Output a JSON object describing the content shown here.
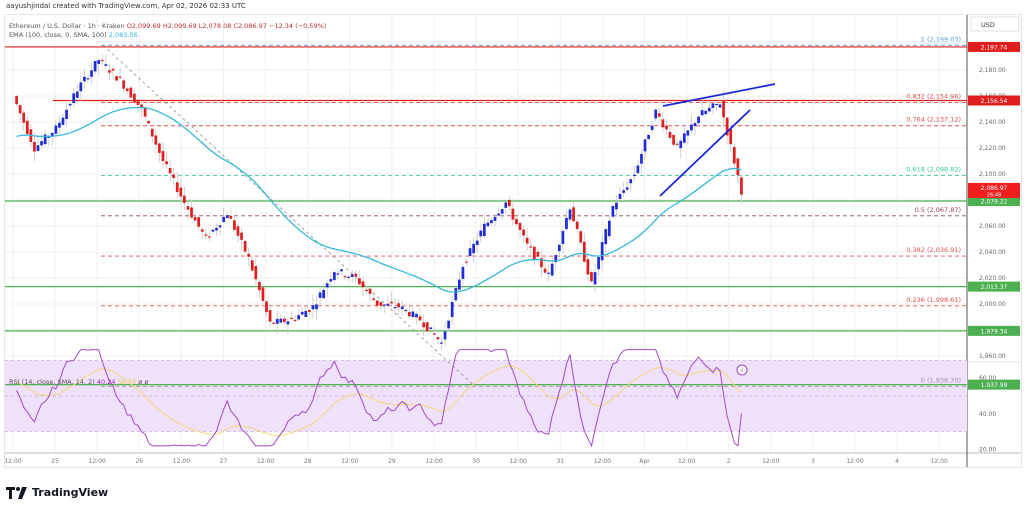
{
  "header": {
    "credit": "aayushjindal created with TradingView.com, Apr 02, 2026 02:33 UTC",
    "symbol": "Ethereum / U.S. Dollar · 1h · Kraken",
    "open": "O2,099.69",
    "high": "H2,099.69",
    "low": "L2,078.08",
    "close": "C2,086.97",
    "change": "−12.34 (−0.59%)",
    "ema_label": "EMA (100, close, 0, SMA, 100)",
    "ema_value": "2,083.56"
  },
  "rsi_legend": {
    "label": "RSI (14, close, SMA, 14, 2)",
    "rsi_value": "40.24",
    "ma_value": "56.79",
    "extra": "ø ø"
  },
  "currency": "USD",
  "footer": {
    "brand": "TradingView"
  },
  "colors": {
    "up": "#1f2bd6",
    "down": "#e01e1e",
    "ema": "#37b8d9",
    "resistance": "#e01e1e",
    "support": "#4caf50",
    "rsi": "#a349c4",
    "rsi_ma": "#f5d776",
    "rsi_band": "#efe0fb",
    "trendline": "#1a28d8"
  },
  "chart_data": [
    {
      "type": "candlestick",
      "title": "Ethereum / U.S. Dollar · 1h · Kraken",
      "ylabel": "USD",
      "ylim": [
        1925,
        2205
      ],
      "y_ticks": [
        "2,180.00",
        "2,160.00",
        "2,140.00",
        "2,120.00",
        "2,100.00",
        "2,080.00",
        "2,060.00",
        "2,040.00",
        "2,020.00",
        "2,000.00",
        "1,980.00",
        "1,960.00"
      ],
      "x_ticks": [
        "12:00",
        "25",
        "12:00",
        "26",
        "12:00",
        "27",
        "12:00",
        "28",
        "12:00",
        "29",
        "12:00",
        "30",
        "12:00",
        "31",
        "12:00",
        "Apr",
        "12:00",
        "2",
        "12:00",
        "3",
        "12:00",
        "4",
        "12:00"
      ],
      "ohlc_last": {
        "open": 2099.69,
        "high": 2099.69,
        "low": 2078.08,
        "close": 2086.97,
        "change": -12.34,
        "change_pct": -0.59
      },
      "ema100_last": 2083.56,
      "price_path_approx": [
        {
          "t": "Mar 24 12:00",
          "price": 2160
        },
        {
          "t": "Mar 24 18:00",
          "price": 2120
        },
        {
          "t": "Mar 25 00:00",
          "price": 2135
        },
        {
          "t": "Mar 25 06:00",
          "price": 2165
        },
        {
          "t": "Mar 25 12:00",
          "price": 2188
        },
        {
          "t": "Mar 25 18:00",
          "price": 2172
        },
        {
          "t": "Mar 26 00:00",
          "price": 2150
        },
        {
          "t": "Mar 26 06:00",
          "price": 2110
        },
        {
          "t": "Mar 26 12:00",
          "price": 2078
        },
        {
          "t": "Mar 26 18:00",
          "price": 2050
        },
        {
          "t": "Mar 27 06:00",
          "price": 2070
        },
        {
          "t": "Mar 27 12:00",
          "price": 2035
        },
        {
          "t": "Mar 27 18:00",
          "price": 1985
        },
        {
          "t": "Mar 28 06:00",
          "price": 1988
        },
        {
          "t": "Mar 28 18:00",
          "price": 1998
        },
        {
          "t": "Mar 29 00:00",
          "price": 2026
        },
        {
          "t": "Mar 29 06:00",
          "price": 2020
        },
        {
          "t": "Mar 29 12:00",
          "price": 2000
        },
        {
          "t": "Mar 29 18:00",
          "price": 1998
        },
        {
          "t": "Mar 30 00:00",
          "price": 1988
        },
        {
          "t": "Mar 30 03:00",
          "price": 1970
        },
        {
          "t": "Mar 30 06:00",
          "price": 2030
        },
        {
          "t": "Mar 30 12:00",
          "price": 2060
        },
        {
          "t": "Mar 30 18:00",
          "price": 2078
        },
        {
          "t": "Mar 31 00:00",
          "price": 2045
        },
        {
          "t": "Mar 31 06:00",
          "price": 2022
        },
        {
          "t": "Mar 31 12:00",
          "price": 2075
        },
        {
          "t": "Mar 31 18:00",
          "price": 2015
        },
        {
          "t": "Apr 01 00:00",
          "price": 2075
        },
        {
          "t": "Apr 01 06:00",
          "price": 2100
        },
        {
          "t": "Apr 01 12:00",
          "price": 2148
        },
        {
          "t": "Apr 01 18:00",
          "price": 2120
        },
        {
          "t": "Apr 02 00:00",
          "price": 2145
        },
        {
          "t": "Apr 02 01:00",
          "price": 2155
        },
        {
          "t": "Apr 02 02:00",
          "price": 2087
        }
      ],
      "horizontal_levels": [
        {
          "label": "2,197.74",
          "price": 2197.74,
          "color": "#e01e1e",
          "style": "solid"
        },
        {
          "label": "2,156.54",
          "price": 2156.54,
          "color": "#e01e1e",
          "style": "solid"
        },
        {
          "label": "2,079.22",
          "price": 2079.22,
          "color": "#4caf50",
          "style": "solid"
        },
        {
          "label": "2,013.37",
          "price": 2013.37,
          "color": "#4caf50",
          "style": "solid"
        },
        {
          "label": "1,979.34",
          "price": 1979.34,
          "color": "#4caf50",
          "style": "solid"
        },
        {
          "label": "1,937.99",
          "price": 1937.99,
          "color": "#4caf50",
          "style": "solid"
        }
      ],
      "fibonacci": [
        {
          "ratio": "1",
          "price": 2199.03,
          "label": "1 (2,199.03)",
          "color": "#5b9bd5"
        },
        {
          "ratio": "0.832",
          "price": 2154.96,
          "label": "0.832 (2,154.96)",
          "color": "#e05050"
        },
        {
          "ratio": "0.764",
          "price": 2137.12,
          "label": "0.764 (2,137.12)",
          "color": "#e05050"
        },
        {
          "ratio": "0.618",
          "price": 2098.82,
          "label": "0.618 (2,098.82)",
          "color": "#3cc8a0"
        },
        {
          "ratio": "0.5",
          "price": 2067.87,
          "label": "0.5 (2,067.87)",
          "color": "#8b4a5a"
        },
        {
          "ratio": "0.382",
          "price": 2036.91,
          "label": "0.382 (2,036.91)",
          "color": "#e05050"
        },
        {
          "ratio": "0.236",
          "price": 1998.61,
          "label": "0.236 (1,998.61)",
          "color": "#e05050"
        },
        {
          "ratio": "0",
          "price": 1936.7,
          "label": "0 (1,936.70)",
          "color": "#999999"
        }
      ],
      "price_labels": [
        {
          "text": "2,086.97",
          "sub": "26:48",
          "bg": "#f21e1e"
        },
        {
          "text": "2,079.22",
          "bg": "#4caf50"
        }
      ],
      "annotations": [
        "Rising wedge trendlines (blue) Apr 01–02",
        "Fibonacci retracement from 2,199.03 to 1,936.70 (grey dashed diagonal)"
      ]
    },
    {
      "type": "line",
      "title": "RSI (14, close, SMA, 14, 2)",
      "ylim": [
        15,
        80
      ],
      "y_ticks": [
        "60.00",
        "40.00",
        "20.00"
      ],
      "band": [
        30,
        70
      ],
      "midline": 50,
      "series": [
        {
          "name": "RSI",
          "last": 40.24,
          "color": "#a349c4"
        },
        {
          "name": "RSI-based MA",
          "last": 56.79,
          "color": "#f5d776"
        }
      ]
    }
  ]
}
